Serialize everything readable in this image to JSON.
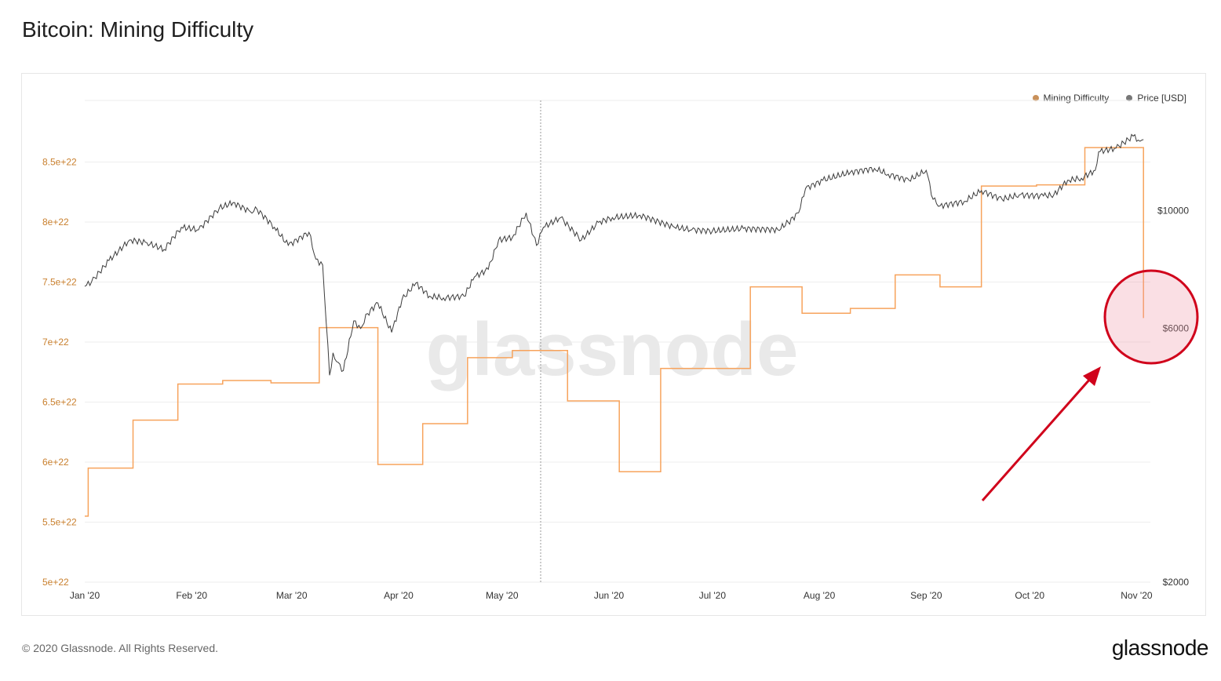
{
  "title": "Bitcoin: Mining Difficulty",
  "footer": {
    "copyright": "© 2020 Glassnode. All Rights Reserved.",
    "logo": "glassnode"
  },
  "watermark": "glassnode",
  "colors": {
    "difficulty": "#f7a35c",
    "price": "#3c3c3c",
    "difficulty_label": "#c9802f",
    "annotation": "#d0021b"
  },
  "chart_data": {
    "type": "line",
    "title": "Bitcoin: Mining Difficulty",
    "grid": true,
    "legend_position": "top-right",
    "x_axis": {
      "range": [
        "2020-01-01",
        "2020-11-05"
      ],
      "ticks": [
        {
          "date": "2020-01-01",
          "label": "Jan '20"
        },
        {
          "date": "2020-02-01",
          "label": "Feb '20"
        },
        {
          "date": "2020-03-01",
          "label": "Mar '20"
        },
        {
          "date": "2020-04-01",
          "label": "Apr '20"
        },
        {
          "date": "2020-05-01",
          "label": "May '20"
        },
        {
          "date": "2020-06-01",
          "label": "Jun '20"
        },
        {
          "date": "2020-07-01",
          "label": "Jul '20"
        },
        {
          "date": "2020-08-01",
          "label": "Aug '20"
        },
        {
          "date": "2020-09-01",
          "label": "Sep '20"
        },
        {
          "date": "2020-10-01",
          "label": "Oct '20"
        },
        {
          "date": "2020-11-01",
          "label": "Nov '20"
        }
      ]
    },
    "left_axis": {
      "scale": "linear",
      "range": [
        5e+22,
        9e+22
      ],
      "ticks": [
        {
          "value": 5e+22,
          "label": "5e+22"
        },
        {
          "value": 5.5e+22,
          "label": "5.5e+22"
        },
        {
          "value": 6e+22,
          "label": "6e+22"
        },
        {
          "value": 6.5e+22,
          "label": "6.5e+22"
        },
        {
          "value": 7e+22,
          "label": "7e+22"
        },
        {
          "value": 7.5e+22,
          "label": "7.5e+22"
        },
        {
          "value": 8e+22,
          "label": "8e+22"
        },
        {
          "value": 8.5e+22,
          "label": "8.5e+22"
        }
      ]
    },
    "right_axis": {
      "scale": "log",
      "range": [
        2000,
        16000
      ],
      "ticks": [
        {
          "value": 2000,
          "label": "$2000"
        },
        {
          "value": 6000,
          "label": "$6000"
        },
        {
          "value": 10000,
          "label": "$10000"
        }
      ]
    },
    "legend": [
      "Mining Difficulty",
      "Price [USD]"
    ],
    "series": [
      {
        "name": "Mining Difficulty",
        "axis": "left",
        "step": true,
        "points": [
          [
            "2020-01-01",
            5.55e+22
          ],
          [
            "2020-01-02",
            5.95e+22
          ],
          [
            "2020-01-15",
            6.35e+22
          ],
          [
            "2020-01-28",
            6.65e+22
          ],
          [
            "2020-02-10",
            6.68e+22
          ],
          [
            "2020-02-24",
            6.66e+22
          ],
          [
            "2020-03-09",
            7.12e+22
          ],
          [
            "2020-03-26",
            5.98e+22
          ],
          [
            "2020-04-08",
            6.32e+22
          ],
          [
            "2020-04-21",
            6.87e+22
          ],
          [
            "2020-05-04",
            6.93e+22
          ],
          [
            "2020-05-20",
            6.51e+22
          ],
          [
            "2020-06-04",
            5.92e+22
          ],
          [
            "2020-06-16",
            6.78e+22
          ],
          [
            "2020-07-12",
            7.46e+22
          ],
          [
            "2020-07-27",
            7.24e+22
          ],
          [
            "2020-08-10",
            7.28e+22
          ],
          [
            "2020-08-23",
            7.56e+22
          ],
          [
            "2020-09-05",
            7.46e+22
          ],
          [
            "2020-09-17",
            8.3e+22
          ],
          [
            "2020-10-03",
            8.31e+22
          ],
          [
            "2020-10-17",
            8.62e+22
          ],
          [
            "2020-11-03",
            7.2e+22
          ]
        ]
      },
      {
        "name": "Price [USD]",
        "axis": "right",
        "points": [
          [
            "2020-01-01",
            7200
          ],
          [
            "2020-01-03",
            7350
          ],
          [
            "2020-01-08",
            8050
          ],
          [
            "2020-01-14",
            8800
          ],
          [
            "2020-01-19",
            8700
          ],
          [
            "2020-01-24",
            8450
          ],
          [
            "2020-01-29",
            9300
          ],
          [
            "2020-02-03",
            9200
          ],
          [
            "2020-02-09",
            10100
          ],
          [
            "2020-02-13",
            10350
          ],
          [
            "2020-02-18",
            9950
          ],
          [
            "2020-02-20",
            10050
          ],
          [
            "2020-02-25",
            9300
          ],
          [
            "2020-02-29",
            8600
          ],
          [
            "2020-03-06",
            9100
          ],
          [
            "2020-03-08",
            8100
          ],
          [
            "2020-03-10",
            7900
          ],
          [
            "2020-03-12",
            4900
          ],
          [
            "2020-03-13",
            5400
          ],
          [
            "2020-03-14",
            5200
          ],
          [
            "2020-03-16",
            5000
          ],
          [
            "2020-03-19",
            6200
          ],
          [
            "2020-03-21",
            6000
          ],
          [
            "2020-03-23",
            6400
          ],
          [
            "2020-03-26",
            6700
          ],
          [
            "2020-03-30",
            5900
          ],
          [
            "2020-04-02",
            6800
          ],
          [
            "2020-04-06",
            7300
          ],
          [
            "2020-04-10",
            6900
          ],
          [
            "2020-04-14",
            6850
          ],
          [
            "2020-04-20",
            6900
          ],
          [
            "2020-04-23",
            7500
          ],
          [
            "2020-04-27",
            7750
          ],
          [
            "2020-04-30",
            8800
          ],
          [
            "2020-05-04",
            8900
          ],
          [
            "2020-05-08",
            9900
          ],
          [
            "2020-05-11",
            8600
          ],
          [
            "2020-05-13",
            9300
          ],
          [
            "2020-05-18",
            9700
          ],
          [
            "2020-05-24",
            8800
          ],
          [
            "2020-05-29",
            9500
          ],
          [
            "2020-06-02",
            9700
          ],
          [
            "2020-06-10",
            9800
          ],
          [
            "2020-06-20",
            9300
          ],
          [
            "2020-06-25",
            9200
          ],
          [
            "2020-07-01",
            9150
          ],
          [
            "2020-07-10",
            9250
          ],
          [
            "2020-07-20",
            9200
          ],
          [
            "2020-07-23",
            9500
          ],
          [
            "2020-07-26",
            9900
          ],
          [
            "2020-07-28",
            11000
          ],
          [
            "2020-08-02",
            11400
          ],
          [
            "2020-08-10",
            11800
          ],
          [
            "2020-08-17",
            12000
          ],
          [
            "2020-08-21",
            11700
          ],
          [
            "2020-08-27",
            11400
          ],
          [
            "2020-09-01",
            11900
          ],
          [
            "2020-09-03",
            10500
          ],
          [
            "2020-09-05",
            10200
          ],
          [
            "2020-09-12",
            10400
          ],
          [
            "2020-09-17",
            10900
          ],
          [
            "2020-09-23",
            10500
          ],
          [
            "2020-09-28",
            10700
          ],
          [
            "2020-10-05",
            10650
          ],
          [
            "2020-10-08",
            10700
          ],
          [
            "2020-10-12",
            11400
          ],
          [
            "2020-10-16",
            11500
          ],
          [
            "2020-10-20",
            11900
          ],
          [
            "2020-10-21",
            12900
          ],
          [
            "2020-10-26",
            13100
          ],
          [
            "2020-10-31",
            13800
          ],
          [
            "2020-11-02",
            13500
          ],
          [
            "2020-11-03",
            13600
          ]
        ]
      }
    ],
    "annotations": [
      "red circle highlighting the final drop in mining difficulty",
      "red arrow pointing to the circle"
    ]
  }
}
